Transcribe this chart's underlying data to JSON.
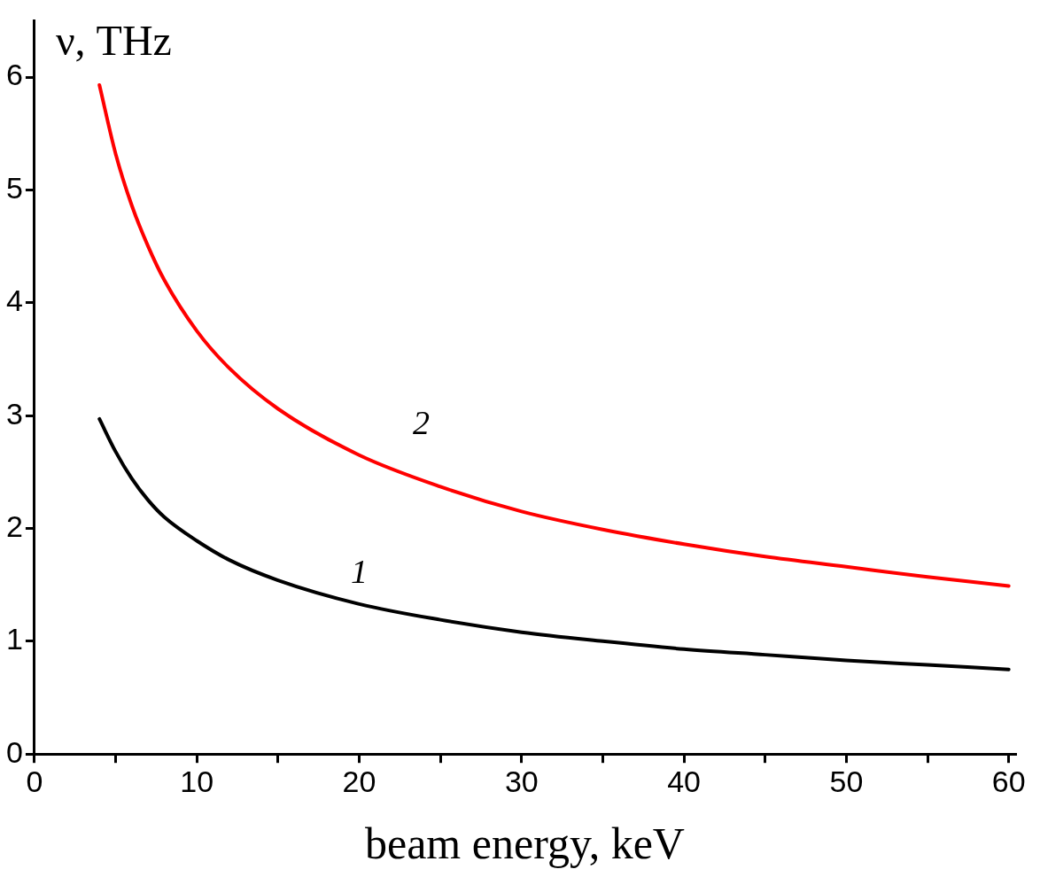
{
  "chart_data": {
    "type": "line",
    "xlabel": "beam energy, keV",
    "ylabel": "ν, THz",
    "xlim": [
      0,
      60.4
    ],
    "ylim": [
      0,
      6.5
    ],
    "xticks": [
      0,
      {
        "value": 5,
        "label": null
      },
      10,
      {
        "value": 15,
        "label": null
      },
      20,
      {
        "value": 25,
        "label": null
      },
      30,
      {
        "value": 35,
        "label": null
      },
      40,
      {
        "value": 45,
        "label": null
      },
      50,
      {
        "value": 55,
        "label": null
      },
      60
    ],
    "yticks": [
      0,
      1,
      2,
      3,
      4,
      5,
      6
    ],
    "grid": false,
    "legend": false,
    "marker": "none",
    "line_style": "solid",
    "series": [
      {
        "name": "1",
        "color": "#000000",
        "x": [
          4,
          5,
          6,
          7,
          8,
          10,
          12,
          15,
          20,
          25,
          30,
          35,
          40,
          45,
          50,
          55,
          60
        ],
        "values": [
          2.97,
          2.68,
          2.44,
          2.25,
          2.1,
          1.89,
          1.72,
          1.54,
          1.33,
          1.19,
          1.08,
          1.0,
          0.93,
          0.88,
          0.83,
          0.79,
          0.75
        ]
      },
      {
        "name": "2",
        "color": "#ff0000",
        "x": [
          4,
          5,
          6,
          7,
          8,
          10,
          12,
          15,
          20,
          25,
          30,
          35,
          40,
          45,
          50,
          55,
          60
        ],
        "values": [
          5.93,
          5.32,
          4.86,
          4.5,
          4.2,
          3.75,
          3.42,
          3.06,
          2.65,
          2.37,
          2.15,
          1.99,
          1.86,
          1.75,
          1.66,
          1.57,
          1.49
        ]
      }
    ]
  }
}
